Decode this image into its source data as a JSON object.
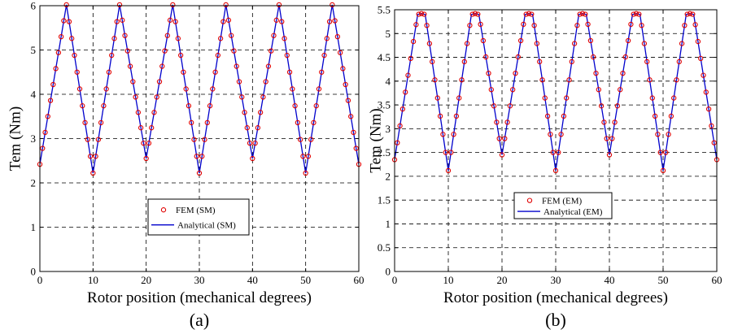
{
  "chart_data": [
    {
      "type": "line",
      "panel_label": "(a)",
      "xlabel": "Rotor position (mechanical degrees)",
      "ylabel": "Tem (Nm)",
      "xlim": [
        0,
        60
      ],
      "ylim": [
        0,
        6
      ],
      "xticks": [
        0,
        10,
        20,
        30,
        40,
        50,
        60
      ],
      "yticks": [
        0,
        1,
        2,
        3,
        4,
        5,
        6
      ],
      "ytick_labels": [
        "0",
        "1",
        "2",
        "3",
        "4",
        "5",
        "6"
      ],
      "grid": true,
      "legend_position": "lower-center",
      "series": [
        {
          "name": "FEM (SM)",
          "style": "markers",
          "color": "#e00000"
        },
        {
          "name": "Analytical (SM)",
          "style": "line",
          "color": "#0000cc"
        }
      ],
      "x": [
        0,
        5,
        10,
        15,
        20,
        25,
        30,
        35,
        40,
        45,
        50,
        55,
        60
      ],
      "y": [
        2.42,
        6.02,
        2.22,
        6.02,
        2.55,
        6.02,
        2.22,
        6.02,
        2.55,
        6.02,
        2.22,
        6.02,
        2.42
      ]
    },
    {
      "type": "line",
      "panel_label": "(b)",
      "xlabel": "Rotor position (mechanical degrees)",
      "ylabel": "Tem (Nm)",
      "xlim": [
        0,
        60
      ],
      "ylim": [
        0,
        5.5
      ],
      "xticks": [
        0,
        10,
        20,
        30,
        40,
        50,
        60
      ],
      "yticks": [
        0,
        0.5,
        1,
        1.5,
        2,
        2.5,
        3,
        3.5,
        4,
        4.5,
        5,
        5.5
      ],
      "ytick_labels": [
        "0",
        "0.5",
        "1",
        "1.5",
        "2",
        "2.5",
        "3",
        "3.5",
        "4",
        "4.5",
        "5",
        "5.5"
      ],
      "grid": true,
      "legend_position": "center-left",
      "series": [
        {
          "name": "FEM (EM)",
          "style": "markers",
          "color": "#e00000"
        },
        {
          "name": "Analytical (EM)",
          "style": "line",
          "color": "#0000cc"
        }
      ],
      "x": [
        0,
        4.3,
        5,
        5.7,
        10,
        14.3,
        15,
        15.7,
        20,
        24.3,
        25,
        25.7,
        30,
        34.3,
        35,
        35.7,
        40,
        44.3,
        45,
        45.7,
        50,
        54.3,
        55,
        55.7,
        60
      ],
      "y": [
        2.35,
        5.4,
        5.42,
        5.4,
        2.12,
        5.4,
        5.42,
        5.4,
        2.45,
        5.4,
        5.42,
        5.4,
        2.12,
        5.4,
        5.42,
        5.4,
        2.45,
        5.4,
        5.42,
        5.4,
        2.12,
        5.4,
        5.42,
        5.4,
        2.35
      ]
    }
  ]
}
